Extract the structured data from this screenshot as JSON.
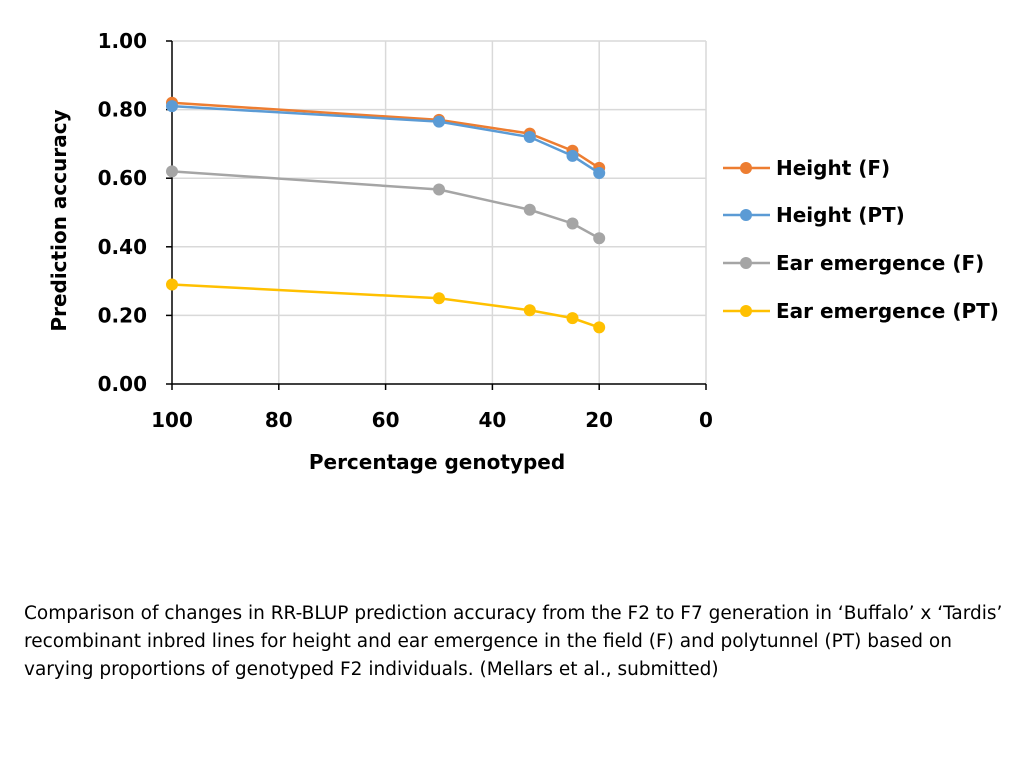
{
  "chart_data": {
    "type": "line",
    "xlabel": "Percentage genotyped",
    "ylabel": "Prediction accuracy",
    "xlim": [
      100,
      0
    ],
    "ylim": [
      0,
      1
    ],
    "x_ticks": [
      "100",
      "80",
      "60",
      "40",
      "20",
      "0"
    ],
    "y_ticks": [
      "0.00",
      "0.20",
      "0.40",
      "0.60",
      "0.80",
      "1.00"
    ],
    "grid": true,
    "legend_position": "right",
    "x": [
      100,
      50,
      33,
      25,
      20
    ],
    "series": [
      {
        "name": "Height (F)",
        "color": "#ED7D31",
        "values": [
          0.82,
          0.77,
          0.73,
          0.68,
          0.63
        ]
      },
      {
        "name": "Height (PT)",
        "color": "#5B9BD5",
        "values": [
          0.81,
          0.765,
          0.72,
          0.665,
          0.615
        ]
      },
      {
        "name": "Ear emergence (F)",
        "color": "#A5A5A5",
        "values": [
          0.62,
          0.567,
          0.508,
          0.468,
          0.425
        ]
      },
      {
        "name": "Ear emergence (PT)",
        "color": "#FFC000",
        "values": [
          0.29,
          0.25,
          0.215,
          0.192,
          0.165
        ]
      }
    ]
  },
  "caption": "Comparison of changes in RR-BLUP prediction accuracy from the F2 to F7 generation in ‘Buffalo’ x ‘Tardis’ recombinant inbred lines for height and ear emergence in the field (F) and polytunnel (PT) based on varying proportions of genotyped F2 individuals.  (Mellars et al., submitted)"
}
